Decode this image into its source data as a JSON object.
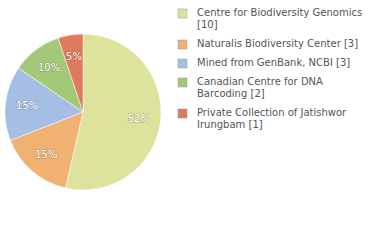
{
  "chart_data": {
    "type": "pie",
    "categories": [
      "Centre for Biodiversity Genomics [10]",
      "Naturalis Biodiversity Center [3]",
      "Mined from GenBank, NCBI [3]",
      "Canadian Centre for DNA Barcoding [2]",
      "Private Collection of Jatishwor Irungbam [1]"
    ],
    "values": [
      52,
      15,
      15,
      10,
      5
    ],
    "value_labels": [
      "52%",
      "15%",
      "15%",
      "10%",
      "5%"
    ],
    "colors": [
      "#dde29c",
      "#f0b173",
      "#a5bfe4",
      "#a3c878",
      "#e07a5f"
    ],
    "data_labels": true,
    "legend": "top-right"
  }
}
